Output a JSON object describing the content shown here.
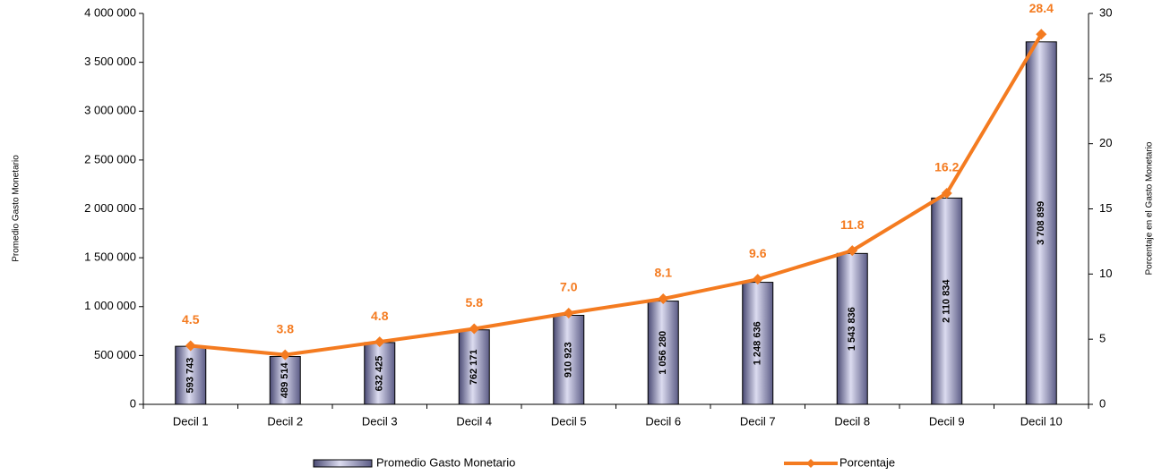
{
  "chart_data": {
    "type": "bar",
    "categories": [
      "Decil 1",
      "Decil 2",
      "Decil 3",
      "Decil 4",
      "Decil 5",
      "Decil 6",
      "Decil 7",
      "Decil 8",
      "Decil 9",
      "Decil 10"
    ],
    "series": [
      {
        "name": "Promedio Gasto Monetario",
        "color": "#6a6a94",
        "values": [
          593743,
          489514,
          632425,
          762171,
          910923,
          1056280,
          1248636,
          1543836,
          2110834,
          3708899
        ],
        "value_labels": [
          "593 743",
          "489 514",
          "632 425",
          "762 171",
          "910 923",
          "1 056 280",
          "1 248 636",
          "1 543 836",
          "2 110 834",
          "3 708 899"
        ]
      },
      {
        "name": "Porcentaje",
        "type": "line",
        "axis": "y2",
        "color": "#f47b20",
        "values": [
          4.5,
          3.8,
          4.8,
          5.8,
          7.0,
          8.1,
          9.6,
          11.8,
          16.2,
          28.4
        ],
        "value_labels": [
          "4.5",
          "3.8",
          "4.8",
          "5.8",
          "7.0",
          "8.1",
          "9.6",
          "11.8",
          "16.2",
          "28.4"
        ]
      }
    ],
    "ylabel": "Promedio Gasto Monetario",
    "y2label": "Porcentaje en el Gasto Monetario",
    "ylim": [
      0,
      4000000
    ],
    "yticks": [
      0,
      {
        "value": 500000,
        "label": "500 000"
      },
      {
        "value": 1000000,
        "label": "1 000 000"
      },
      {
        "value": 1500000,
        "label": "1 500 000"
      },
      {
        "value": 2000000,
        "label": "2 000 000"
      },
      {
        "value": 2500000,
        "label": "2 500 000"
      },
      {
        "value": 3000000,
        "label": "3 000 000"
      },
      {
        "value": 3500000,
        "label": "3 500 000"
      },
      {
        "value": 4000000,
        "label": "4 000 000"
      }
    ],
    "y2lim": [
      0,
      30
    ],
    "y2ticks": [
      0,
      5,
      10,
      15,
      20,
      25,
      30
    ],
    "grid": false,
    "legend": "bottom"
  }
}
